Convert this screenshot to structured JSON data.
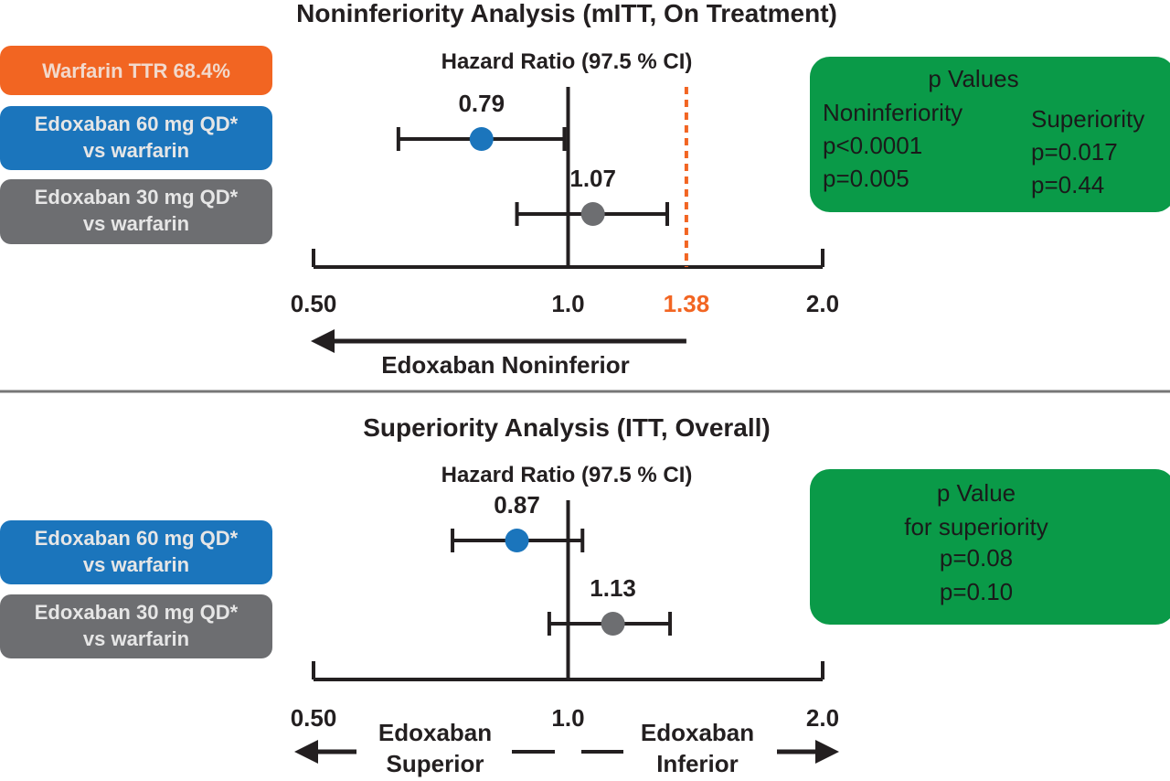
{
  "chart_data": [
    {
      "type": "forest",
      "title": "Noninferiority Analysis (mITT, On Treatment)",
      "subtitle": "Hazard Ratio (97.5 % CI)",
      "note": "Warfarin TTR 68.4%",
      "note_color": "#f26522",
      "log_scale": true,
      "xlim": [
        0.5,
        2
      ],
      "xticks": [
        {
          "value": 0.5,
          "label": "0.50"
        },
        {
          "value": 1,
          "label": "1.0"
        },
        {
          "value": 2,
          "label": "2.0"
        }
      ],
      "null_line": 1,
      "reference_line": {
        "value": 1.38,
        "color": "#f26522"
      },
      "series": [
        {
          "name": "Edoxaban 60 mg QD*\nvs warfarin",
          "color": "#1b75bc",
          "values": [
            0.79
          ],
          "ci_low": [
            0.63
          ],
          "ci_high": [
            0.99
          ]
        },
        {
          "name": "Edoxaban 30 mg QD*\nvs warfarin",
          "color": "#6d6e71",
          "values": [
            1.07
          ],
          "ci_low": [
            0.87
          ],
          "ci_high": [
            1.31
          ]
        }
      ],
      "annotations": [
        "Edoxaban Noninferior"
      ],
      "p_values": {
        "title": "p Values",
        "color": "#0a9a48",
        "columns": [
          {
            "name": "Noninferiority",
            "values": [
              "p<0.0001",
              "p=0.005"
            ]
          },
          {
            "name": "Superiority",
            "values": [
              "p=0.017",
              "p=0.44"
            ]
          }
        ]
      }
    },
    {
      "type": "forest",
      "title": "Superiority Analysis (ITT, Overall)",
      "subtitle": "Hazard Ratio (97.5 % CI)",
      "log_scale": true,
      "xlim": [
        0.5,
        2
      ],
      "xticks": [
        {
          "value": 0.5,
          "label": "0.50"
        },
        {
          "value": 1,
          "label": "1.0"
        },
        {
          "value": 2,
          "label": "2.0"
        }
      ],
      "null_line": 1,
      "series": [
        {
          "name": "Edoxaban 60 mg QD*\nvs warfarin",
          "color": "#1b75bc",
          "values": [
            0.87
          ],
          "ci_low": [
            0.73
          ],
          "ci_high": [
            1.04
          ]
        },
        {
          "name": "Edoxaban 30 mg QD*\nvs warfarin",
          "color": "#6d6e71",
          "values": [
            1.13
          ],
          "ci_low": [
            0.95
          ],
          "ci_high": [
            1.32
          ]
        }
      ],
      "annotations": [
        "Edoxaban\nSuperior",
        "Edoxaban\nInferior"
      ],
      "p_values": {
        "title": "p Value",
        "subtitle": "for superiority",
        "color": "#0a9a48",
        "values": [
          "p=0.08",
          "p=0.10"
        ]
      }
    }
  ]
}
